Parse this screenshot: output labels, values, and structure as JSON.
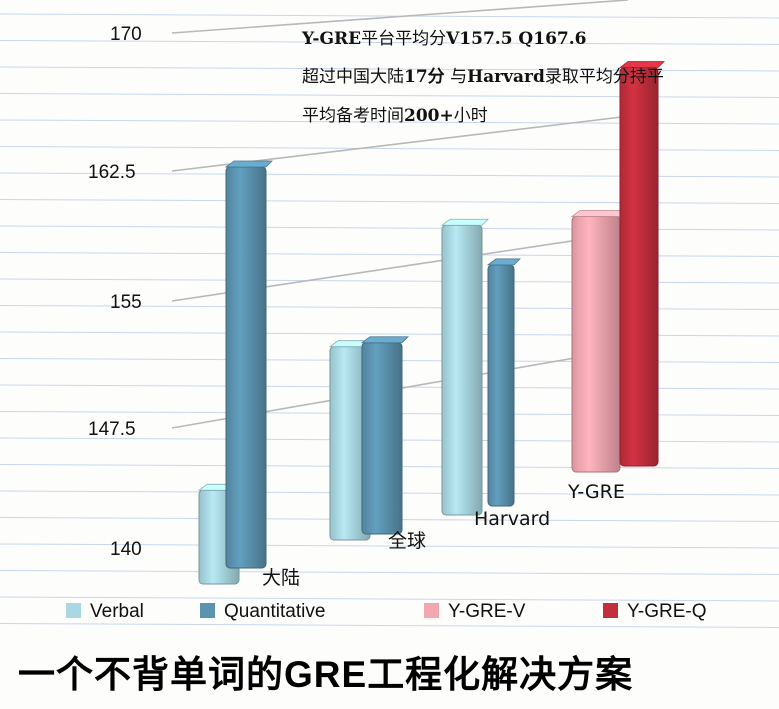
{
  "chart_data": {
    "type": "bar",
    "style": "3d-clustered-column",
    "yticks": [
      "140",
      "147.5",
      "155",
      "162.5",
      "170"
    ],
    "ylim": [
      140,
      170
    ],
    "grid": true,
    "legend_position": "bottom",
    "categories": [
      "大陆",
      "全球",
      "Harvard",
      "Y-GRE"
    ],
    "series": [
      {
        "name": "Verbal",
        "color": "#a9d8e2",
        "values": [
          145.2,
          151.6,
          158.2,
          null
        ]
      },
      {
        "name": "Quantitative",
        "color": "#5b93b0",
        "values": [
          162.9,
          151.6,
          155.4,
          null
        ]
      },
      {
        "name": "Y-GRE-V",
        "color": "#f4a7b1",
        "values": [
          null,
          null,
          null,
          157.5
        ]
      },
      {
        "name": "Y-GRE-Q",
        "color": "#c32e3d",
        "values": [
          null,
          null,
          null,
          167.6
        ]
      }
    ],
    "annotations": [
      [
        "Y-GRE",
        "平台平均分",
        "V157.5 Q167.6"
      ],
      [
        "超过中国大陆",
        "17分",
        "  与",
        "Harvard",
        "录取平均分持平"
      ],
      [
        "平均备考时间",
        "200+",
        "小时"
      ]
    ]
  },
  "footer": {
    "title_before": "一个不背单词的",
    "title_em": "GRE",
    "title_after": "工程化解决方案"
  }
}
